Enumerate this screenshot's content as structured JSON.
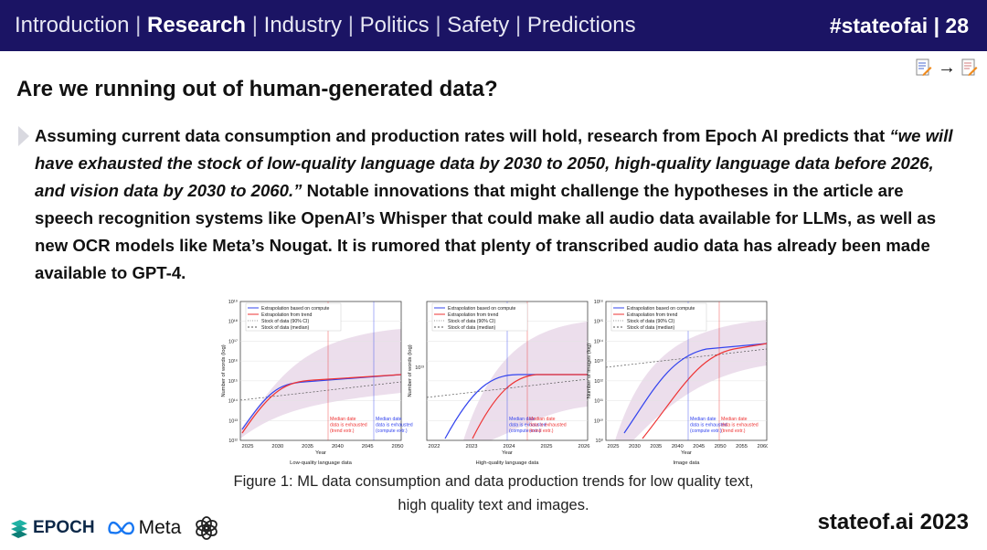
{
  "header": {
    "nav_items": [
      "Introduction",
      "Research",
      "Industry",
      "Politics",
      "Safety",
      "Predictions"
    ],
    "active_index": 1,
    "separator": "|",
    "hashtag": "#stateofai | 28"
  },
  "tools": {
    "arrow": "→"
  },
  "title": "Are we running out of human-generated data?",
  "paragraph": {
    "intro": "Assuming current data consumption and production rates will hold, research from Epoch AI predicts that ",
    "quote": "“we will have exhausted the stock of low-quality language data by 2030 to 2050, high-quality language data before 2026, and vision data by 2030 to 2060.”",
    "rest": " Notable innovations that might challenge the hypotheses in the article are speech recognition systems like OpenAI’s Whisper that could make all audio data available for LLMs, as well as new OCR models like Meta’s Nougat. It is rumored that plenty of transcribed audio data has already been made available to GPT-4."
  },
  "figure": {
    "legend": [
      "Extrapolation based on compute",
      "Extrapolation from trend",
      "Stock of data (90% CI)",
      "Stock of data (median)"
    ],
    "xlabel": "Year",
    "panels": [
      {
        "subtitle": "Low-quality language data",
        "ylabel": "Number of words (log)",
        "yticks": [
          "10¹²",
          "10¹³",
          "10¹⁴",
          "10¹⁵",
          "10¹⁶",
          "10¹⁷",
          "10¹⁸",
          "10¹⁹"
        ],
        "xticks": [
          "2025",
          "2030",
          "2035",
          "2040",
          "2045",
          "2050"
        ],
        "annotation_trend": [
          "Median date",
          "data is exhausted",
          "(trend extr.)"
        ],
        "annotation_compute": [
          "Median date",
          "data is exhausted",
          "(compute extr.)"
        ]
      },
      {
        "subtitle": "High-quality language data",
        "ylabel": "Number of words (log)",
        "yticks": [
          "10¹³"
        ],
        "xticks": [
          "2022",
          "2023",
          "2024",
          "2025",
          "2026"
        ],
        "annotation_compute": [
          "Median date",
          "data is exhausted",
          "(compute extr.)"
        ],
        "annotation_trend": [
          "Median date",
          "data is exhausted",
          "(trend extr.)"
        ]
      },
      {
        "subtitle": "Image data",
        "ylabel": "Number of images (log)",
        "yticks": [
          "10⁹",
          "10¹⁰",
          "10¹¹",
          "10¹²",
          "10¹³",
          "10¹⁴",
          "10¹⁵",
          "10¹⁶"
        ],
        "xticks": [
          "2025",
          "2030",
          "2035",
          "2040",
          "2045",
          "2050",
          "2055",
          "2060"
        ],
        "annotation_compute": [
          "Median date",
          "data is exhausted",
          "(compute extr.)"
        ],
        "annotation_trend": [
          "Median date",
          "data is exhausted",
          "(trend extr.)"
        ]
      }
    ],
    "caption_lines": [
      "Figure 1: ML data consumption and data production trends for low quality text,",
      "high quality text and images."
    ],
    "colors": {
      "compute": "#3344ee",
      "trend": "#ee3333",
      "ci_band": "#c8a0c8"
    }
  },
  "footer": {
    "logos": {
      "epoch": "EPOCH",
      "meta": "Meta",
      "openai_icon": "openai-logo-icon"
    },
    "brand": "stateof.ai 2023"
  }
}
